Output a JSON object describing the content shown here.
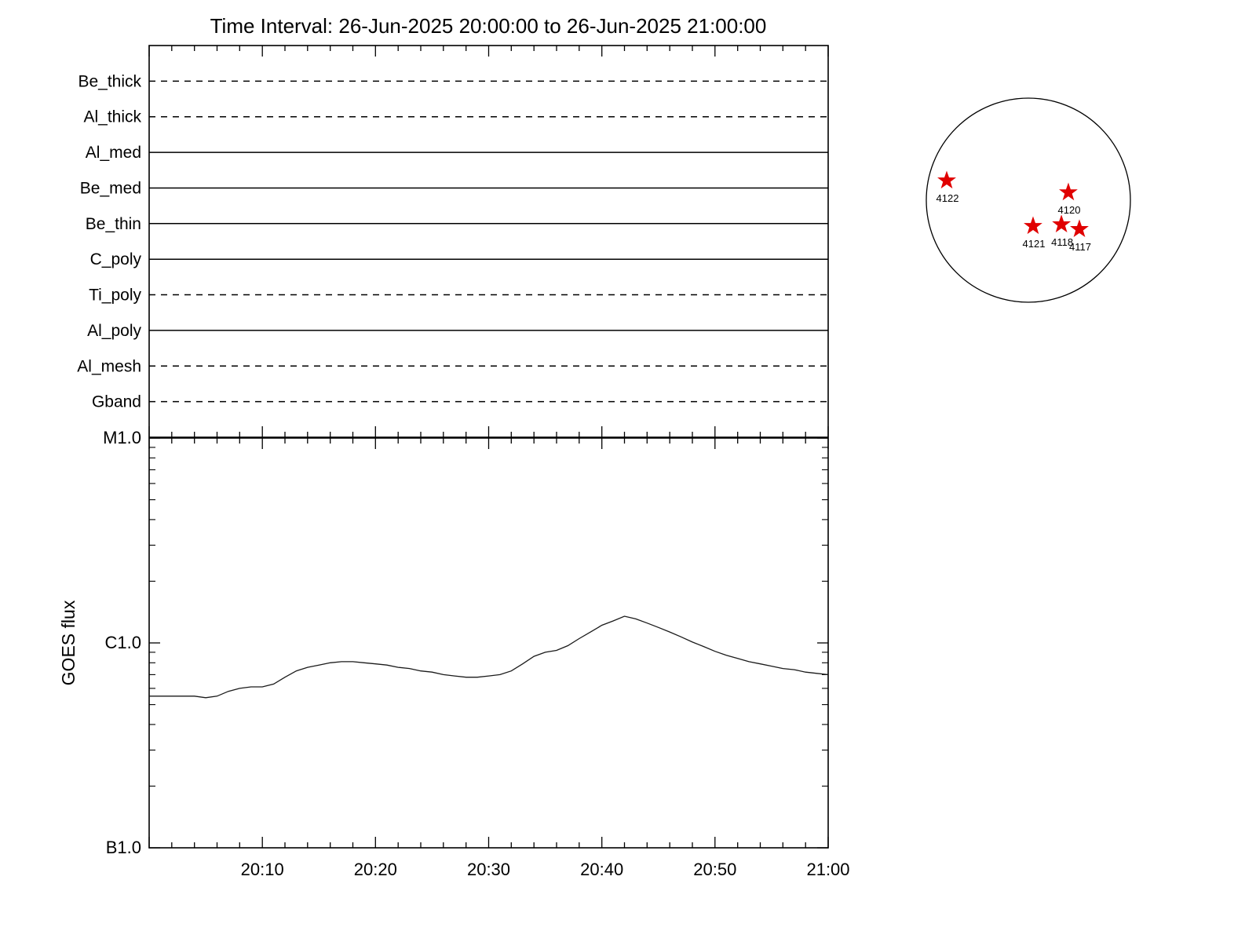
{
  "title": "Time Interval: 26-Jun-2025 20:00:00 to 26-Jun-2025 21:00:00",
  "chart_data": [
    {
      "type": "line",
      "panel": "xrt_filters",
      "description": "horizontal availability lines, one per filter, spanning the full time interval",
      "x_range": [
        "20:00",
        "21:00"
      ],
      "rows": [
        {
          "label": "Be_thick",
          "line_style": "dashed"
        },
        {
          "label": "Al_thick",
          "line_style": "dashed"
        },
        {
          "label": "Al_med",
          "line_style": "solid"
        },
        {
          "label": "Be_med",
          "line_style": "solid"
        },
        {
          "label": "Be_thin",
          "line_style": "solid"
        },
        {
          "label": "C_poly",
          "line_style": "solid"
        },
        {
          "label": "Ti_poly",
          "line_style": "dashed"
        },
        {
          "label": "Al_poly",
          "line_style": "solid"
        },
        {
          "label": "Al_mesh",
          "line_style": "dashed"
        },
        {
          "label": "Gband",
          "line_style": "dashed"
        }
      ]
    },
    {
      "type": "line",
      "panel": "goes_flux",
      "ylabel": "GOES flux",
      "yscale": "log",
      "ylim_wm2": [
        1e-07,
        1e-05
      ],
      "yticks": [
        {
          "label": "M1.0",
          "flux_wm2": 1e-05
        },
        {
          "label": "C1.0",
          "flux_wm2": 1e-06
        },
        {
          "label": "B1.0",
          "flux_wm2": 1e-07
        }
      ],
      "xticks": [
        {
          "label": "20:10",
          "minute": 10
        },
        {
          "label": "20:20",
          "minute": 20
        },
        {
          "label": "20:30",
          "minute": 30
        },
        {
          "label": "20:40",
          "minute": 40
        },
        {
          "label": "20:50",
          "minute": 50
        },
        {
          "label": "21:00",
          "minute": 60
        }
      ],
      "x_minutes": [
        0,
        1,
        2,
        3,
        4,
        5,
        6,
        7,
        8,
        9,
        10,
        11,
        12,
        13,
        14,
        15,
        16,
        17,
        18,
        19,
        20,
        21,
        22,
        23,
        24,
        25,
        26,
        27,
        28,
        29,
        30,
        31,
        32,
        33,
        34,
        35,
        36,
        37,
        38,
        39,
        40,
        41,
        42,
        43,
        44,
        45,
        46,
        47,
        48,
        49,
        50,
        51,
        52,
        53,
        54,
        55,
        56,
        57,
        58,
        59,
        60
      ],
      "flux_1e6_wm2": [
        0.55,
        0.55,
        0.55,
        0.55,
        0.55,
        0.54,
        0.55,
        0.58,
        0.6,
        0.61,
        0.61,
        0.63,
        0.68,
        0.73,
        0.76,
        0.78,
        0.8,
        0.81,
        0.81,
        0.8,
        0.79,
        0.78,
        0.76,
        0.75,
        0.73,
        0.72,
        0.7,
        0.69,
        0.68,
        0.68,
        0.69,
        0.7,
        0.73,
        0.79,
        0.86,
        0.9,
        0.92,
        0.97,
        1.05,
        1.13,
        1.22,
        1.28,
        1.35,
        1.31,
        1.25,
        1.19,
        1.13,
        1.07,
        1.01,
        0.96,
        0.91,
        0.87,
        0.84,
        0.81,
        0.79,
        0.77,
        0.75,
        0.74,
        0.72,
        0.71,
        0.7
      ]
    }
  ],
  "solar_disk": {
    "star_color": "#e00000",
    "active_regions": [
      {
        "label": "4122",
        "fx": 0.1,
        "fy": 0.404
      },
      {
        "label": "4120",
        "fx": 0.696,
        "fy": 0.462
      },
      {
        "label": "4121",
        "fx": 0.523,
        "fy": 0.627
      },
      {
        "label": "4118",
        "fx": 0.662,
        "fy": 0.619
      },
      {
        "label": "4117",
        "fx": 0.75,
        "fy": 0.642
      }
    ]
  }
}
